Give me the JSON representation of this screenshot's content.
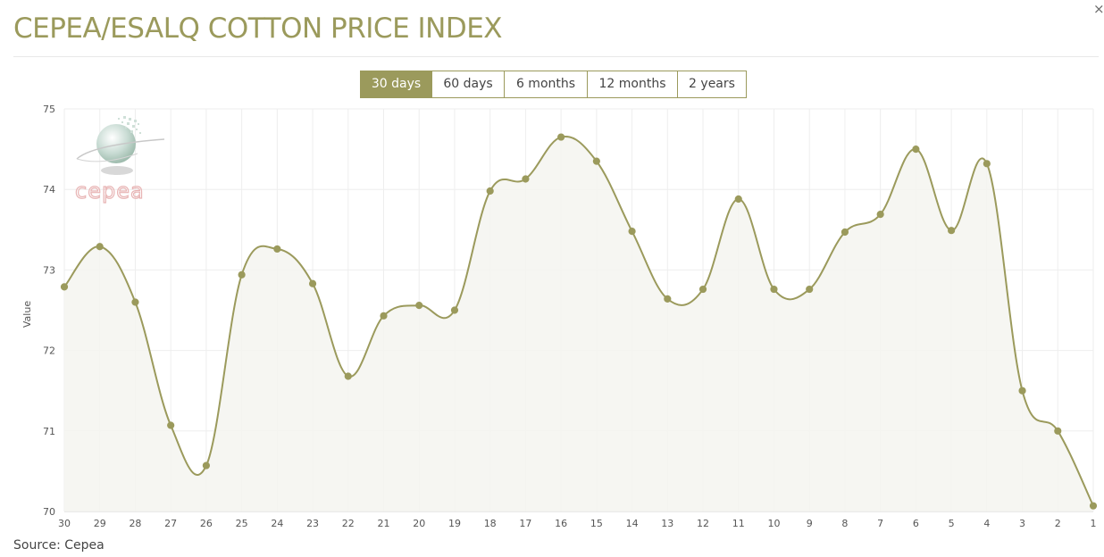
{
  "header": {
    "title": "CEPEA/ESALQ COTTON PRICE INDEX",
    "close_label": "×"
  },
  "range_tabs": [
    {
      "label": "30 days",
      "active": true
    },
    {
      "label": "60 days",
      "active": false
    },
    {
      "label": "6 months",
      "active": false
    },
    {
      "label": "12 months",
      "active": false
    },
    {
      "label": "2 years",
      "active": false
    }
  ],
  "watermark": {
    "text": "cepea",
    "icon": "globe-logo"
  },
  "colors": {
    "accent": "#9b9a5c",
    "area_fill": "#f5f5f0",
    "grid": "#eeeeee",
    "watermark_text": "#e8b4b4"
  },
  "chart_data": {
    "type": "area",
    "ylabel": "Value",
    "xlabel": "",
    "ylim": [
      70,
      75
    ],
    "yticks": [
      70,
      71,
      72,
      73,
      74,
      75
    ],
    "grid": true,
    "categories": [
      "30",
      "29",
      "28",
      "27",
      "26",
      "25",
      "24",
      "23",
      "22",
      "21",
      "20",
      "19",
      "18",
      "17",
      "16",
      "15",
      "14",
      "13",
      "12",
      "11",
      "10",
      "9",
      "8",
      "7",
      "6",
      "5",
      "4",
      "3",
      "2",
      "1"
    ],
    "series": [
      {
        "values": [
          72.79,
          73.29,
          72.6,
          71.07,
          70.57,
          72.94,
          73.26,
          72.83,
          71.68,
          72.43,
          72.56,
          72.5,
          73.98,
          74.13,
          74.65,
          74.35,
          73.48,
          72.64,
          72.76,
          73.88,
          72.76,
          72.76,
          73.47,
          73.69,
          74.5,
          73.49,
          74.32,
          71.5,
          71.0,
          70.07
        ]
      }
    ]
  },
  "footer": {
    "source": "Source: Cepea"
  }
}
